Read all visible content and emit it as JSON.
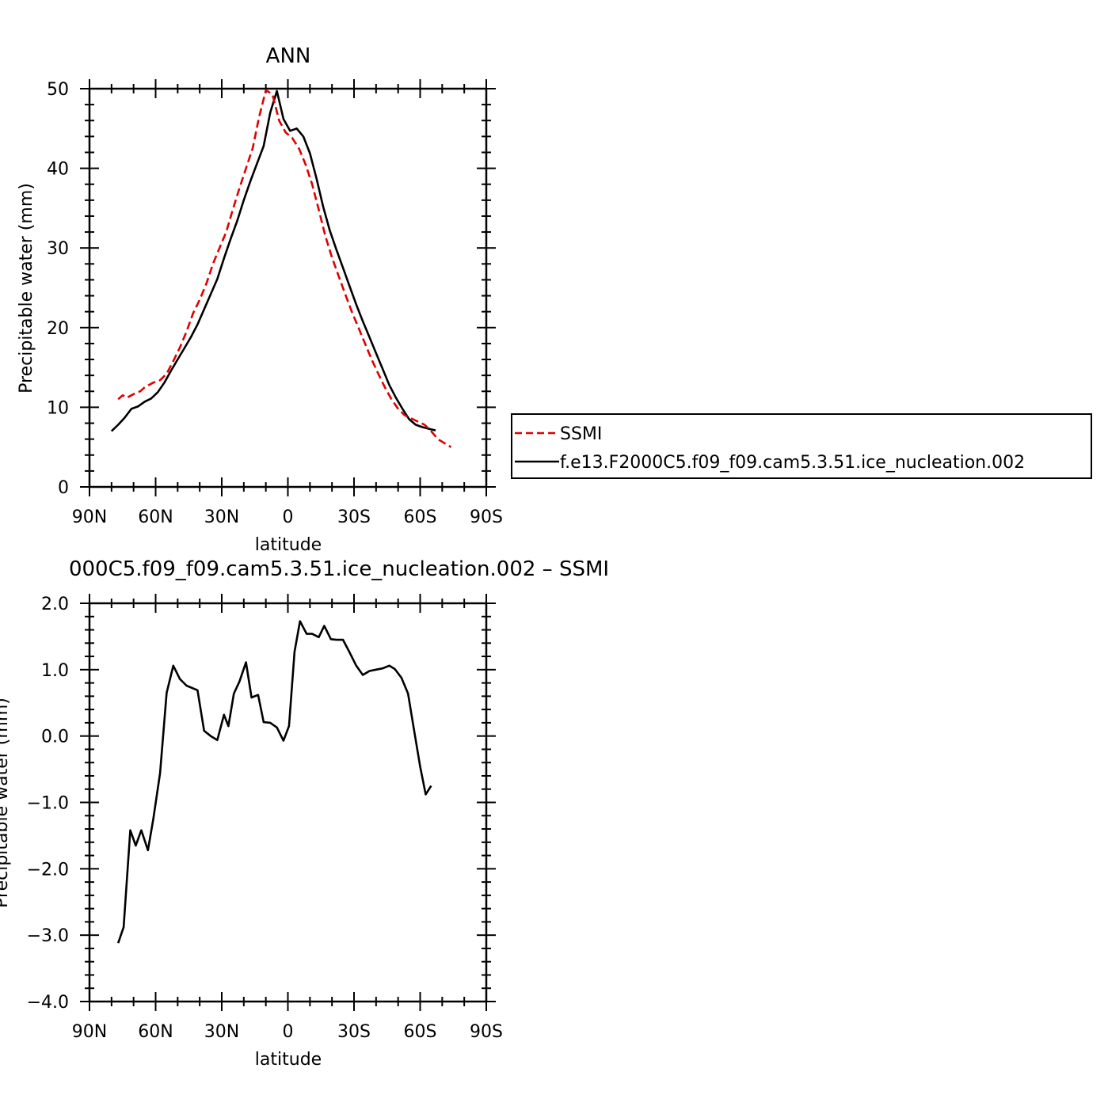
{
  "chart_data": [
    {
      "type": "line",
      "title": "ANN",
      "xlabel": "latitude",
      "ylabel": "Precipitable water (mm)",
      "x_ticks": [
        {
          "value": -90,
          "label": "90N"
        },
        {
          "value": -60,
          "label": "60N"
        },
        {
          "value": -30,
          "label": "30N"
        },
        {
          "value": 0,
          "label": "0"
        },
        {
          "value": 30,
          "label": "30S"
        },
        {
          "value": 60,
          "label": "60S"
        },
        {
          "value": 90,
          "label": "90S"
        }
      ],
      "y_ticks": [
        {
          "value": 0,
          "label": "0"
        },
        {
          "value": 10,
          "label": "10"
        },
        {
          "value": 20,
          "label": "20"
        },
        {
          "value": 30,
          "label": "30"
        },
        {
          "value": 40,
          "label": "40"
        },
        {
          "value": 50,
          "label": "50"
        }
      ],
      "xlim": [
        -90,
        90
      ],
      "ylim": [
        0,
        50
      ],
      "grid": false,
      "legend": {
        "placement": "right",
        "entries": [
          {
            "name": "SSMI",
            "color": "#e00000",
            "dash": "dashed"
          },
          {
            "name": "f.e13.F2000C5.f09_f09.cam5.3.51.ice_nucleation.002",
            "color": "#000000",
            "dash": "solid"
          }
        ]
      },
      "series": [
        {
          "name": "SSMI",
          "color": "#e00000",
          "dash": "dashed",
          "x": [
            -77,
            -75,
            -73,
            -71,
            -69,
            -67,
            -65,
            -63,
            -61,
            -58,
            -55,
            -52,
            -49,
            -46,
            -43,
            -40,
            -37,
            -34,
            -31,
            -28,
            -25,
            -22,
            -19,
            -16,
            -13,
            -10,
            -7,
            -4,
            -1,
            2,
            5,
            8,
            11,
            14,
            17,
            20,
            23,
            26,
            29,
            32,
            35,
            38,
            41,
            44,
            47,
            50,
            53,
            56,
            59,
            62,
            65,
            68,
            71,
            74
          ],
          "values": [
            11.0,
            11.5,
            11.2,
            11.5,
            11.8,
            12.0,
            12.5,
            12.8,
            13.1,
            13.4,
            14.2,
            15.8,
            17.5,
            19.5,
            21.8,
            23.5,
            25.5,
            28.0,
            30.0,
            32.0,
            34.8,
            37.5,
            40.0,
            42.5,
            46.5,
            49.8,
            49.3,
            46.0,
            44.5,
            43.8,
            42.5,
            40.5,
            38.0,
            34.8,
            31.5,
            28.8,
            26.5,
            24.2,
            22.0,
            20.0,
            18.0,
            16.0,
            14.2,
            12.5,
            11.0,
            9.8,
            9.0,
            8.6,
            8.2,
            7.8,
            7.0,
            6.0,
            5.5,
            5.0
          ]
        },
        {
          "name": "f.e13.F2000C5.f09_f09.cam5.3.51.ice_nucleation.002",
          "color": "#000000",
          "dash": "solid",
          "x": [
            -80,
            -77,
            -74,
            -71,
            -68,
            -65,
            -62,
            -59,
            -56,
            -53,
            -50,
            -47,
            -44,
            -41,
            -38,
            -35,
            -32,
            -29,
            -26,
            -23,
            -20,
            -17,
            -14,
            -11,
            -8,
            -5,
            -2,
            1,
            4,
            7,
            10,
            13,
            16,
            19,
            22,
            25,
            28,
            31,
            34,
            37,
            40,
            43,
            46,
            49,
            52,
            55,
            58,
            61,
            64,
            67
          ],
          "values": [
            7.0,
            7.8,
            8.7,
            9.8,
            10.1,
            10.7,
            11.1,
            11.9,
            13.1,
            14.6,
            16.0,
            17.4,
            18.8,
            20.4,
            22.3,
            24.2,
            26.1,
            28.7,
            31.1,
            33.4,
            36.0,
            38.4,
            40.6,
            42.8,
            47.0,
            49.7,
            46.2,
            44.7,
            45.0,
            44.0,
            41.9,
            38.7,
            35.2,
            32.2,
            29.8,
            27.5,
            25.2,
            22.9,
            20.8,
            18.8,
            16.8,
            14.8,
            12.8,
            11.2,
            9.8,
            8.5,
            7.8,
            7.5,
            7.3,
            7.1
          ]
        }
      ]
    },
    {
      "type": "line",
      "title": "000C5.f09_f09.cam5.3.51.ice_nucleation.002 – SSMI",
      "xlabel": "latitude",
      "ylabel": "Precipitable water (mm)",
      "x_ticks": [
        {
          "value": -90,
          "label": "90N"
        },
        {
          "value": -60,
          "label": "60N"
        },
        {
          "value": -30,
          "label": "30N"
        },
        {
          "value": 0,
          "label": "0"
        },
        {
          "value": 30,
          "label": "30S"
        },
        {
          "value": 60,
          "label": "60S"
        },
        {
          "value": 90,
          "label": "90S"
        }
      ],
      "y_ticks": [
        {
          "value": -4,
          "label": "−4.0"
        },
        {
          "value": -3,
          "label": "−3.0"
        },
        {
          "value": -2,
          "label": "−2.0"
        },
        {
          "value": -1,
          "label": "−1.0"
        },
        {
          "value": 0,
          "label": "0.0"
        },
        {
          "value": 1,
          "label": "1.0"
        },
        {
          "value": 2,
          "label": "2.0"
        }
      ],
      "xlim": [
        -90,
        90
      ],
      "ylim": [
        -4,
        2
      ],
      "grid": false,
      "series": [
        {
          "color": "#000000",
          "dash": "solid",
          "x": [
            -77,
            -74.5,
            -71.5,
            -69,
            -66.5,
            -63.5,
            -61,
            -58,
            -55,
            -52,
            -49,
            -46,
            -41,
            -38,
            -35,
            -32,
            -29,
            -27,
            -24.5,
            -22,
            -19,
            -16.5,
            -13.5,
            -11,
            -8,
            -5,
            -2,
            0.5,
            3,
            5.5,
            8.5,
            11,
            14,
            16.5,
            19.5,
            22,
            25,
            28,
            31,
            34,
            37,
            40,
            43,
            46,
            48.5,
            51.5,
            54.5,
            57,
            60,
            62.5,
            65
          ],
          "values": [
            -3.12,
            -2.88,
            -1.42,
            -1.65,
            -1.42,
            -1.72,
            -1.24,
            -0.56,
            0.65,
            1.06,
            0.86,
            0.76,
            0.69,
            0.08,
            0.0,
            -0.06,
            0.32,
            0.15,
            0.64,
            0.82,
            1.11,
            0.58,
            0.62,
            0.21,
            0.2,
            0.13,
            -0.07,
            0.15,
            1.27,
            1.73,
            1.54,
            1.54,
            1.49,
            1.66,
            1.46,
            1.45,
            1.45,
            1.26,
            1.06,
            0.92,
            0.98,
            1.0,
            1.02,
            1.06,
            1.01,
            0.88,
            0.64,
            0.14,
            -0.46,
            -0.88,
            -0.75
          ]
        }
      ]
    }
  ]
}
